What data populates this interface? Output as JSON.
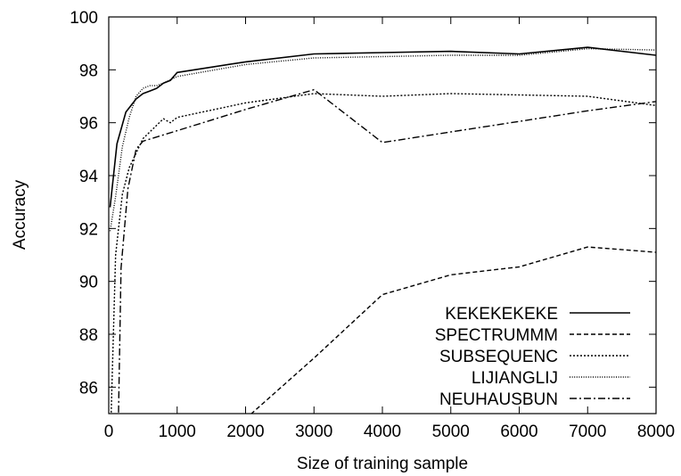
{
  "chart_data": {
    "type": "line",
    "title": "",
    "xlabel": "Size of training sample",
    "ylabel": "Accuracy",
    "xlim": [
      0,
      8000
    ],
    "ylim": [
      85,
      100
    ],
    "xticks": [
      0,
      1000,
      2000,
      3000,
      4000,
      5000,
      6000,
      7000,
      8000
    ],
    "yticks": [
      86,
      88,
      90,
      92,
      94,
      96,
      98,
      100
    ],
    "grid": false,
    "legend_position": "bottom-right",
    "series": [
      {
        "name": "KEKEKEKEKE",
        "dash": "solid",
        "points": [
          [
            20,
            92.8
          ],
          [
            120,
            95.2
          ],
          [
            250,
            96.4
          ],
          [
            400,
            96.9
          ],
          [
            500,
            97.1
          ],
          [
            600,
            97.2
          ],
          [
            700,
            97.3
          ],
          [
            800,
            97.5
          ],
          [
            900,
            97.6
          ],
          [
            1000,
            97.9
          ],
          [
            2000,
            98.3
          ],
          [
            3000,
            98.6
          ],
          [
            4000,
            98.65
          ],
          [
            5000,
            98.7
          ],
          [
            6000,
            98.6
          ],
          [
            7000,
            98.85
          ],
          [
            8000,
            98.55
          ]
        ]
      },
      {
        "name": "SPECTRUMMM",
        "dash": "dashed",
        "points": [
          [
            2000,
            84.8
          ],
          [
            3000,
            87.1
          ],
          [
            4000,
            89.5
          ],
          [
            5000,
            90.25
          ],
          [
            6000,
            90.55
          ],
          [
            7000,
            91.3
          ],
          [
            8000,
            91.1
          ]
        ]
      },
      {
        "name": "SUBSEQUENC",
        "dash": "dotted",
        "points": [
          [
            30,
            84.5
          ],
          [
            100,
            91.0
          ],
          [
            200,
            93.3
          ],
          [
            300,
            94.3
          ],
          [
            500,
            95.4
          ],
          [
            700,
            95.9
          ],
          [
            800,
            96.15
          ],
          [
            900,
            96.0
          ],
          [
            1000,
            96.2
          ],
          [
            2000,
            96.75
          ],
          [
            3000,
            97.1
          ],
          [
            4000,
            97.0
          ],
          [
            5000,
            97.1
          ],
          [
            6000,
            97.05
          ],
          [
            7000,
            97.0
          ],
          [
            8000,
            96.65
          ]
        ]
      },
      {
        "name": "LIJIANGLIJ",
        "dash": "fine-dotted",
        "points": [
          [
            20,
            91.9
          ],
          [
            100,
            93.2
          ],
          [
            200,
            95.1
          ],
          [
            300,
            96.2
          ],
          [
            400,
            97.0
          ],
          [
            500,
            97.3
          ],
          [
            600,
            97.4
          ],
          [
            700,
            97.4
          ],
          [
            800,
            97.5
          ],
          [
            1000,
            97.75
          ],
          [
            2000,
            98.2
          ],
          [
            3000,
            98.45
          ],
          [
            4000,
            98.5
          ],
          [
            5000,
            98.55
          ],
          [
            6000,
            98.55
          ],
          [
            7000,
            98.8
          ],
          [
            8000,
            98.75
          ]
        ]
      },
      {
        "name": "NEUHAUSBUN",
        "dash": "dash-dot",
        "points": [
          [
            140,
            84.5
          ],
          [
            180,
            90.5
          ],
          [
            280,
            93.5
          ],
          [
            400,
            95.0
          ],
          [
            500,
            95.3
          ],
          [
            1000,
            95.7
          ],
          [
            2000,
            96.5
          ],
          [
            3000,
            97.25
          ],
          [
            4000,
            95.25
          ],
          [
            5000,
            95.65
          ],
          [
            6000,
            96.05
          ],
          [
            7000,
            96.45
          ],
          [
            8000,
            96.8
          ]
        ]
      }
    ]
  }
}
